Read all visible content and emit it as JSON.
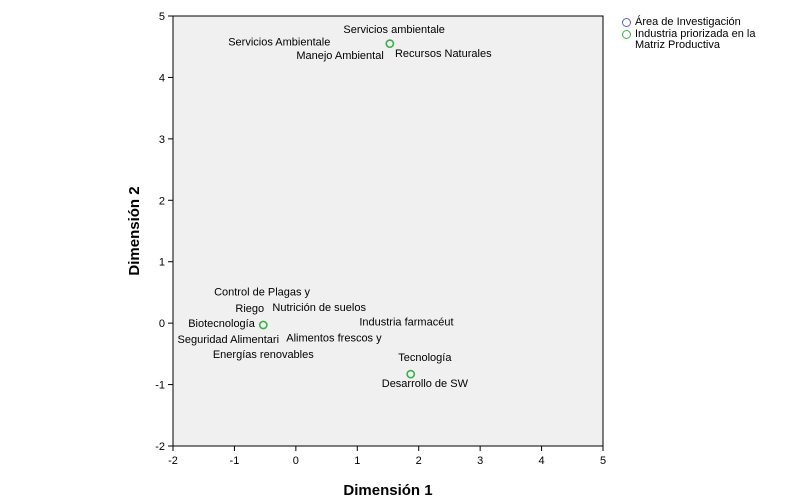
{
  "chart_data": {
    "type": "scatter",
    "xlabel": "Dimensión 1",
    "ylabel": "Dimensión 2",
    "xlim": [
      -2,
      5
    ],
    "ylim": [
      -2,
      5
    ],
    "xticks": [
      -2,
      -1,
      0,
      1,
      2,
      3,
      4,
      5
    ],
    "yticks": [
      -2,
      -1,
      0,
      1,
      2,
      3,
      4,
      5
    ],
    "grid": false,
    "legend_position": "right",
    "series": [
      {
        "name": "Área de Investigación",
        "color": "#5a5ec8",
        "points": []
      },
      {
        "name": "Industria priorizada en la Matriz Productiva",
        "color": "#3bb04a",
        "points": [
          {
            "x": 1.53,
            "y": 4.55
          },
          {
            "x": -0.53,
            "y": -0.03
          },
          {
            "x": 1.87,
            "y": -0.83
          }
        ]
      }
    ],
    "annotations": [
      {
        "text": "Servicios ambientale",
        "x": 1.6,
        "y": 4.72,
        "anchor": "middle"
      },
      {
        "text": "Servicios Ambientale",
        "x": -0.27,
        "y": 4.52,
        "anchor": "middle"
      },
      {
        "text": "Manejo Ambiental",
        "x": 0.72,
        "y": 4.3,
        "anchor": "middle"
      },
      {
        "text": "Recursos Naturales",
        "x": 2.4,
        "y": 4.33,
        "anchor": "middle"
      },
      {
        "text": "Control de Plagas y",
        "x": -0.55,
        "y": 0.45,
        "anchor": "middle"
      },
      {
        "text": "Riego",
        "x": -0.75,
        "y": 0.18,
        "anchor": "middle"
      },
      {
        "text": "Nutrición de suelos",
        "x": 0.38,
        "y": 0.2,
        "anchor": "middle"
      },
      {
        "text": "Biotecnología",
        "x": -1.21,
        "y": -0.06,
        "anchor": "middle"
      },
      {
        "text": "Industria farmacéut",
        "x": 1.8,
        "y": -0.04,
        "anchor": "middle"
      },
      {
        "text": "Seguridad Alimentari",
        "x": -1.1,
        "y": -0.32,
        "anchor": "middle"
      },
      {
        "text": "Alimentos frescos y",
        "x": 0.62,
        "y": -0.3,
        "anchor": "middle"
      },
      {
        "text": "Energías renovables",
        "x": -0.53,
        "y": -0.57,
        "anchor": "middle"
      },
      {
        "text": "Tecnología",
        "x": 2.1,
        "y": -0.62,
        "anchor": "middle"
      },
      {
        "text": "Desarrollo de SW",
        "x": 2.1,
        "y": -1.04,
        "anchor": "middle"
      }
    ]
  }
}
